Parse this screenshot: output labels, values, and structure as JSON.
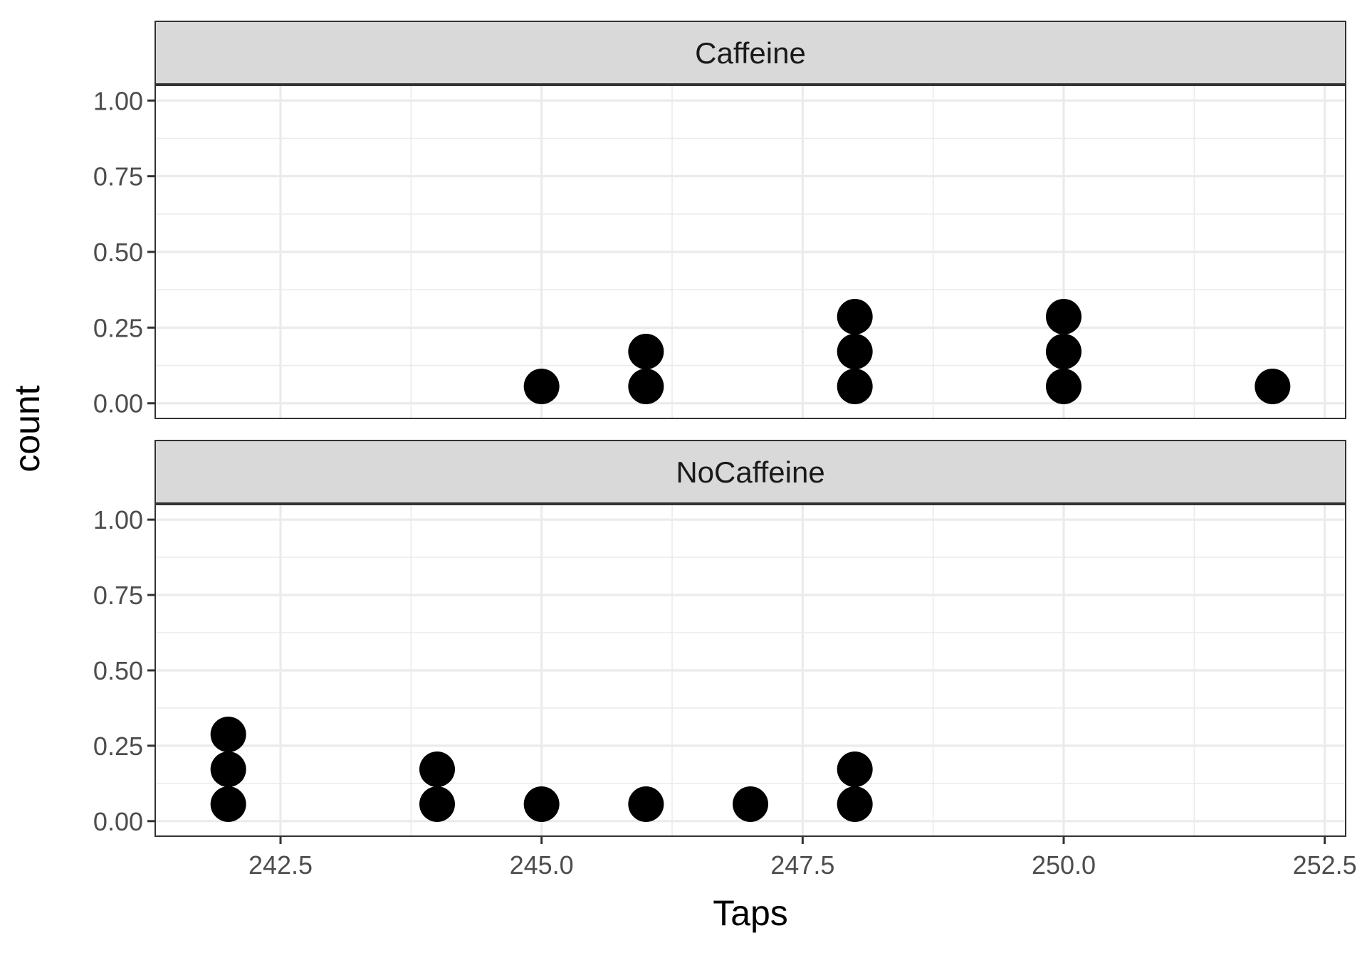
{
  "chart_data": {
    "type": "dotplot",
    "xlabel": "Taps",
    "ylabel": "count",
    "xlim": [
      241.3,
      252.7
    ],
    "ylim": [
      -0.05,
      1.05
    ],
    "x_ticks": [
      242.5,
      245.0,
      247.5,
      250.0,
      252.5
    ],
    "x_tick_labels": [
      "242.5",
      "245.0",
      "247.5",
      "250.0",
      "252.5"
    ],
    "y_ticks": [
      0,
      0.25,
      0.5,
      0.75,
      1.0
    ],
    "y_tick_labels": [
      "0.00",
      "0.25",
      "0.50",
      "0.75",
      "1.00"
    ],
    "grid": true,
    "facets": [
      {
        "label": "Caffeine",
        "values": [
          245,
          246,
          246,
          248,
          248,
          248,
          250,
          250,
          250,
          252
        ]
      },
      {
        "label": "NoCaffeine",
        "values": [
          242,
          242,
          242,
          244,
          244,
          245,
          246,
          247,
          248,
          248
        ]
      }
    ]
  }
}
